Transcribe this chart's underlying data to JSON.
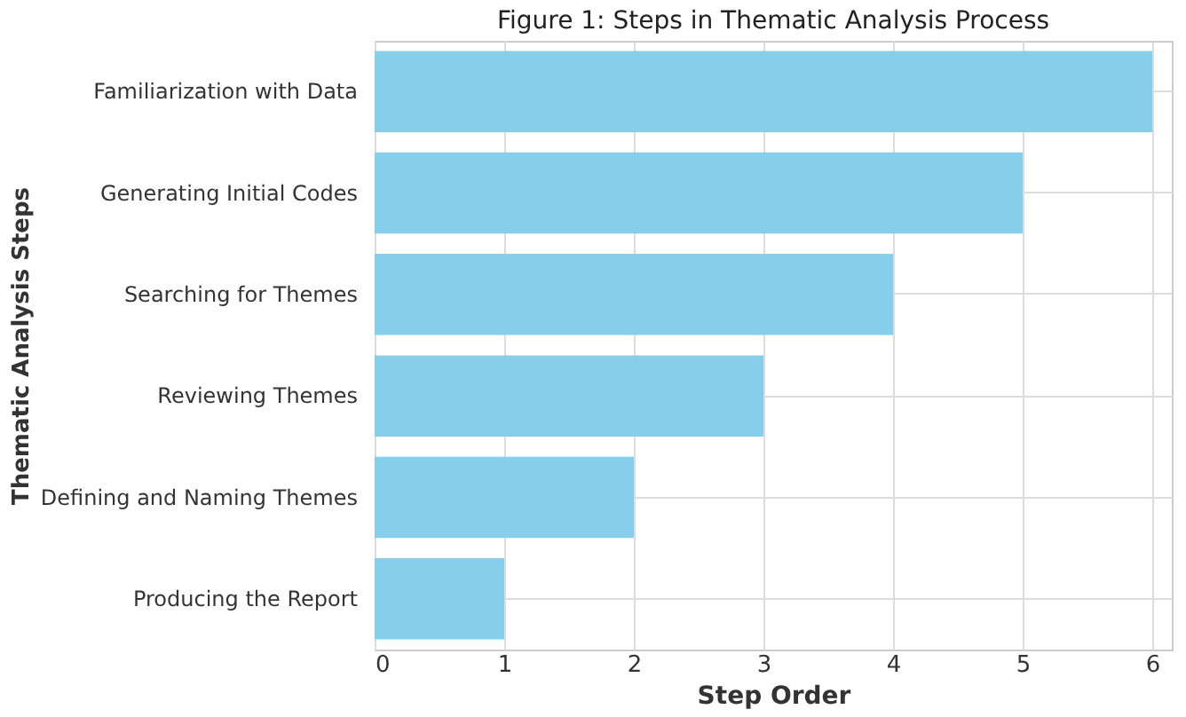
{
  "chart_data": {
    "type": "bar",
    "orientation": "horizontal",
    "title": "Figure 1: Steps in Thematic Analysis Process",
    "xlabel": "Step Order",
    "ylabel": "Thematic Analysis Steps",
    "categories": [
      "Familiarization with Data",
      "Generating Initial Codes",
      "Searching for Themes",
      "Reviewing Themes",
      "Defining and Naming Themes",
      "Producing the Report"
    ],
    "values": [
      6,
      5,
      4,
      3,
      2,
      1
    ],
    "color": "#87ceeb",
    "xlim": [
      0,
      6.15
    ],
    "xticks": [
      0,
      1,
      2,
      3,
      4,
      5,
      6
    ],
    "grid": true
  }
}
